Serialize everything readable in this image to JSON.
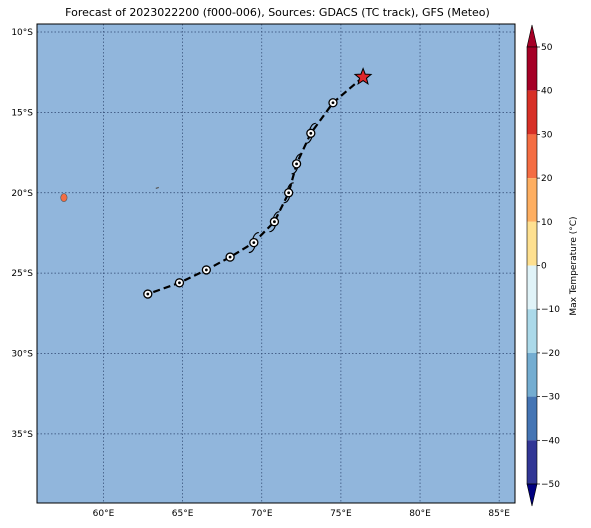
{
  "title": "Forecast of 2023022200 (f000-006), Sources: GDACS (TC track), GFS (Meteo)",
  "map": {
    "lon_range": [
      55.8,
      86.0
    ],
    "lat_range": [
      -39.3,
      -9.5
    ],
    "lon_ticks": [
      "60°E",
      "65°E",
      "70°E",
      "75°E",
      "80°E",
      "85°E"
    ],
    "lon_tick_values": [
      60,
      65,
      70,
      75,
      80,
      85
    ],
    "lat_ticks": [
      "10°S",
      "15°S",
      "20°S",
      "25°S",
      "30°S",
      "35°S"
    ],
    "lat_tick_values": [
      -10,
      -15,
      -20,
      -25,
      -30,
      -35
    ],
    "ocean_color": "#91b6dc",
    "grid": "dotted"
  },
  "track": {
    "current_position": {
      "lon": 76.4,
      "lat": -12.8,
      "marker": "star-icon",
      "color": "#e0262b"
    },
    "points": [
      {
        "lon": 74.5,
        "lat": -14.4,
        "symbol": "circle"
      },
      {
        "lon": 73.1,
        "lat": -16.3,
        "symbol": "cyclone"
      },
      {
        "lon": 72.2,
        "lat": -18.2,
        "symbol": "cyclone"
      },
      {
        "lon": 71.7,
        "lat": -20.0,
        "symbol": "cyclone"
      },
      {
        "lon": 70.8,
        "lat": -21.8,
        "symbol": "cyclone"
      },
      {
        "lon": 69.5,
        "lat": -23.1,
        "symbol": "cyclone"
      },
      {
        "lon": 68.0,
        "lat": -24.0,
        "symbol": "circle"
      },
      {
        "lon": 66.5,
        "lat": -24.8,
        "symbol": "circle"
      },
      {
        "lon": 64.8,
        "lat": -25.6,
        "symbol": "circle"
      },
      {
        "lon": 62.8,
        "lat": -26.3,
        "symbol": "circle"
      }
    ]
  },
  "land": [
    {
      "lon": 57.5,
      "lat": -20.3,
      "color": "#f46d43"
    },
    {
      "lon": 63.4,
      "lat": -19.7,
      "color": "#555555"
    }
  ],
  "colorbar": {
    "label": "Max Temperature (°C)",
    "ticks": [
      "50",
      "40",
      "30",
      "20",
      "10",
      "0",
      "−10",
      "−20",
      "−30",
      "−40",
      "−50"
    ],
    "colors": [
      "#a50026",
      "#d73027",
      "#f46d43",
      "#fdae61",
      "#fee090",
      "#ffffbf",
      "#e0f3f8",
      "#abd9e9",
      "#74add1",
      "#4575b4",
      "#313695"
    ]
  }
}
